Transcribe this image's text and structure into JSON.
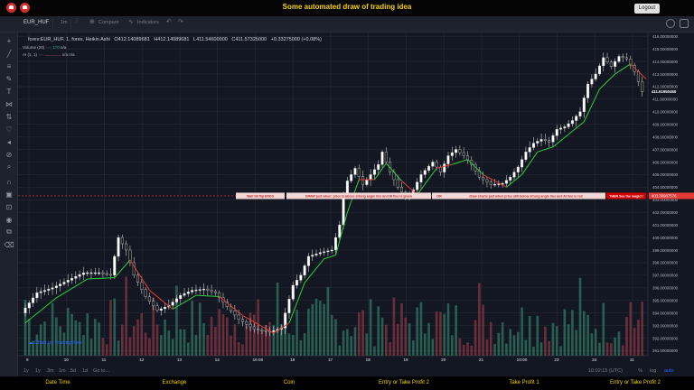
{
  "header": {
    "title": "Some automated draw of trading idea",
    "logout_label": "Logout",
    "logo_color": "#d32f2f",
    "title_color": "#f5d300"
  },
  "toolbar": {
    "symbol": "EUR_HUF",
    "interval": "1m",
    "compare_label": "Compare",
    "indicators_label": "Indicators"
  },
  "legend": {
    "main": "forex:EUR_HUF, 1, forex, Heikin Ashi",
    "open": "O412.14089681",
    "high": "H412.14089681",
    "low": "L411.54600000",
    "close": "C411.57325000",
    "change": "+0.33275000 (+0.08%)",
    "volume_label": "Volume (20)",
    "volume_val1": "170",
    "volume_val2": "n/a",
    "ai_label": "AI (1, 1)",
    "ai_val1": "n/a",
    "ai_val2": "n/a"
  },
  "annotations": {
    "box1": "Wait till flip ENDS",
    "box2": "DRAW just when: price is above strong angle line and AI line is green",
    "box3": "OR",
    "box4": "draw shorts just when price still below strong angle line and AI line is red",
    "box5": "THEN See the magic!!",
    "price_tag": "403.30987576"
  },
  "last_price_tag": "411.61950460",
  "watermark": "Chart by TradingView",
  "timeframes": [
    "1y",
    "1y",
    "3m",
    "1m",
    "5d",
    "1d",
    "Go to..."
  ],
  "bottom_right": {
    "time": "10:02:15 (UTC)",
    "pct": "%",
    "log": "log",
    "auto": "auto"
  },
  "footer": [
    "Date Time",
    "Exchange",
    "Coin",
    "Entry or Take Profit 2",
    "Take Profit 1",
    "Entry or Take Profit 2"
  ],
  "chart_data": {
    "type": "candlestick",
    "style": "Heikin Ashi",
    "symbol": "EUR_HUF",
    "y_ticks": [
      416.0,
      415.0,
      414.0,
      413.0,
      412.0,
      411.0,
      410.0,
      409.0,
      408.0,
      407.0,
      406.0,
      405.0,
      404.0,
      403.0,
      402.0,
      401.0,
      400.0,
      399.0,
      398.0,
      397.0,
      396.0,
      395.0,
      394.0,
      393.0,
      392.0,
      391.0
    ],
    "y_tick_labels": [
      "416.00000000",
      "415.00000000",
      "414.00000000",
      "413.00000000",
      "412.00000000",
      "411.00000000",
      "410.00000000",
      "409.00000000",
      "408.00000000",
      "407.00000000",
      "406.00000000",
      "405.00000000",
      "404.00000000",
      "403.00000000",
      "402.00000000",
      "401.00000000",
      "400.00000000",
      "399.00000000",
      "398.00000000",
      "397.00000000",
      "396.00000000",
      "395.00000000",
      "394.00000000",
      "393.00000000",
      "392.00000000",
      "391.00000000"
    ],
    "ylim": [
      390.6,
      416.3
    ],
    "x_ticks": [
      "9",
      "10",
      "11",
      "12",
      "13",
      "14",
      "10:00",
      "16",
      "17",
      "18",
      "19",
      "20",
      "21",
      "10:00",
      "23",
      "24",
      "11"
    ],
    "price_path": [
      [
        0,
        394.0
      ],
      [
        4,
        395.6
      ],
      [
        8,
        396.0
      ],
      [
        12,
        396.6
      ],
      [
        16,
        397.2
      ],
      [
        20,
        397.2
      ],
      [
        23,
        397.0
      ],
      [
        25,
        400.0
      ],
      [
        27,
        399.0
      ],
      [
        29,
        397.0
      ],
      [
        32,
        395.3
      ],
      [
        35,
        394.2
      ],
      [
        38,
        394.6
      ],
      [
        41,
        395.4
      ],
      [
        44,
        395.8
      ],
      [
        47,
        395.9
      ],
      [
        50,
        395.6
      ],
      [
        53,
        394.5
      ],
      [
        56,
        393.5
      ],
      [
        60,
        392.7
      ],
      [
        64,
        392.5
      ],
      [
        67,
        392.8
      ],
      [
        68,
        394.0
      ],
      [
        70,
        396.2
      ],
      [
        72,
        397.0
      ],
      [
        74,
        398.5
      ],
      [
        77,
        398.8
      ],
      [
        80,
        399.0
      ],
      [
        82,
        401.0
      ],
      [
        83,
        403.5
      ],
      [
        84,
        404.5
      ],
      [
        86,
        405.5
      ],
      [
        88,
        404.2
      ],
      [
        90,
        405.0
      ],
      [
        92,
        405.8
      ],
      [
        93,
        406.8
      ],
      [
        95,
        405.2
      ],
      [
        97,
        404.0
      ],
      [
        99,
        403.2
      ],
      [
        101,
        403.8
      ],
      [
        103,
        405.0
      ],
      [
        106,
        406.0
      ],
      [
        108,
        405.2
      ],
      [
        110,
        406.5
      ],
      [
        112,
        407.0
      ],
      [
        114,
        406.5
      ],
      [
        116,
        405.8
      ],
      [
        118,
        404.8
      ],
      [
        121,
        404.2
      ],
      [
        124,
        404.3
      ],
      [
        126,
        404.8
      ],
      [
        128,
        405.6
      ],
      [
        130,
        406.8
      ],
      [
        132,
        407.5
      ],
      [
        134,
        407.8
      ],
      [
        136,
        407.6
      ],
      [
        138,
        408.6
      ],
      [
        140,
        408.8
      ],
      [
        142,
        409.3
      ],
      [
        144,
        410.0
      ],
      [
        146,
        412.2
      ],
      [
        148,
        413.0
      ],
      [
        150,
        414.3
      ],
      [
        152,
        413.6
      ],
      [
        154,
        414.4
      ],
      [
        156,
        414.2
      ],
      [
        158,
        413.2
      ],
      [
        160,
        411.6
      ]
    ],
    "ai_line_path": [
      [
        0,
        393.2
      ],
      [
        8,
        395.2
      ],
      [
        16,
        396.7
      ],
      [
        23,
        396.8
      ],
      [
        27,
        398.2
      ],
      [
        32,
        395.8
      ],
      [
        38,
        394.3
      ],
      [
        44,
        395.4
      ],
      [
        50,
        395.3
      ],
      [
        56,
        393.8
      ],
      [
        64,
        392.4
      ],
      [
        68,
        393.2
      ],
      [
        72,
        396.4
      ],
      [
        77,
        398.3
      ],
      [
        80,
        398.6
      ],
      [
        83,
        402.0
      ],
      [
        86,
        404.6
      ],
      [
        90,
        404.6
      ],
      [
        93,
        405.9
      ],
      [
        97,
        404.5
      ],
      [
        101,
        403.4
      ],
      [
        106,
        405.5
      ],
      [
        110,
        405.8
      ],
      [
        114,
        406.2
      ],
      [
        118,
        405.0
      ],
      [
        124,
        404.0
      ],
      [
        128,
        405.0
      ],
      [
        132,
        406.8
      ],
      [
        136,
        407.2
      ],
      [
        140,
        408.2
      ],
      [
        144,
        409.2
      ],
      [
        148,
        411.8
      ],
      [
        152,
        413.0
      ],
      [
        156,
        413.8
      ],
      [
        160,
        412.6
      ]
    ],
    "horizontal_line": 403.30987576,
    "last_price": 411.6195046
  }
}
